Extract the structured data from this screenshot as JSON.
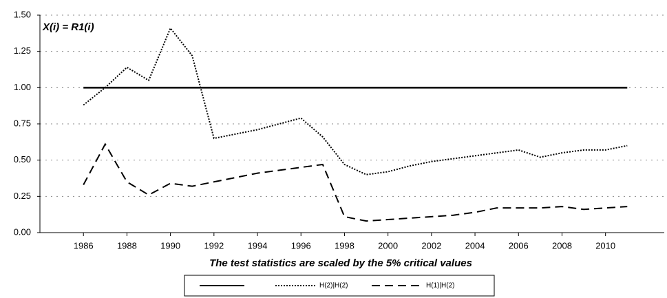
{
  "chart_data": {
    "type": "line",
    "annotation": "X(i) = R1(i)",
    "x_label": "The test statistics are scaled by the 5% critical values",
    "x": [
      1986,
      1987,
      1988,
      1989,
      1990,
      1991,
      1992,
      1993,
      1994,
      1995,
      1996,
      1997,
      1998,
      1999,
      2000,
      2001,
      2002,
      2003,
      2004,
      2005,
      2006,
      2007,
      2008,
      2009,
      2010,
      2011
    ],
    "xlim": [
      1984,
      2012.7
    ],
    "xticks": [
      1986,
      1988,
      1990,
      1992,
      1994,
      1996,
      1998,
      2000,
      2002,
      2004,
      2006,
      2008,
      2010
    ],
    "ylim": [
      0,
      1.5
    ],
    "yticks": [
      {
        "value": 0,
        "label": "0.00"
      },
      {
        "value": 0.25,
        "label": "0.25"
      },
      {
        "value": 0.5,
        "label": "0.50"
      },
      {
        "value": 0.75,
        "label": "0.75"
      },
      {
        "value": 1,
        "label": "1.00"
      },
      {
        "value": 1.25,
        "label": "1.25"
      },
      {
        "value": 1.5,
        "label": "1.50"
      }
    ],
    "grid": true,
    "series": [
      {
        "color": "#000000",
        "style": "solid",
        "values": [
          1,
          1,
          1,
          1,
          1,
          1,
          1,
          1,
          1,
          1,
          1,
          1,
          1,
          1,
          1,
          1,
          1,
          1,
          1,
          1,
          1,
          1,
          1,
          1,
          1,
          1
        ]
      },
      {
        "name": "H(2)|H(2)",
        "color": "#000000",
        "style": "dotted",
        "values": [
          0.88,
          1.0,
          1.14,
          1.05,
          1.41,
          1.22,
          0.65,
          0.68,
          0.71,
          0.75,
          0.79,
          0.66,
          0.47,
          0.4,
          0.42,
          0.46,
          0.49,
          0.51,
          0.53,
          0.55,
          0.57,
          0.52,
          0.55,
          0.57,
          0.57,
          0.6
        ]
      },
      {
        "name": "H(1)|H(2)",
        "color": "#000000",
        "style": "dashed",
        "values": [
          0.33,
          0.61,
          0.35,
          0.26,
          0.34,
          0.32,
          0.35,
          0.38,
          0.41,
          0.43,
          0.45,
          0.47,
          0.11,
          0.08,
          0.09,
          0.1,
          0.11,
          0.12,
          0.14,
          0.17,
          0.17,
          0.17,
          0.18,
          0.16,
          0.17,
          0.18
        ]
      }
    ]
  }
}
